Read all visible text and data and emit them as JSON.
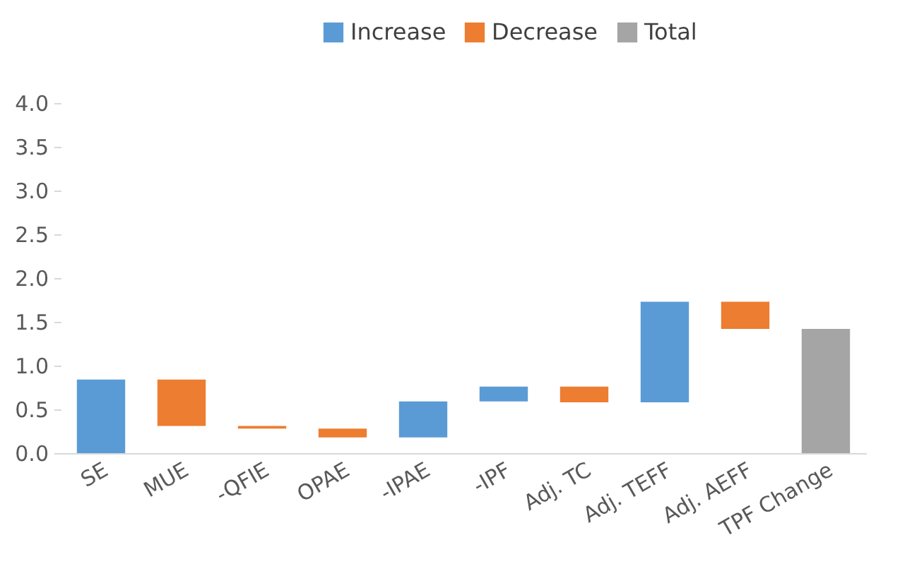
{
  "chart_data": {
    "type": "bar",
    "categories": [
      "SE",
      "MUE",
      "-QFIE",
      "OPAE",
      "-IPAE",
      "-IPF",
      "Adj. TC",
      "Adj. TEFF",
      "Adj. AEFF",
      "TPF Change"
    ],
    "series": [
      {
        "name": "Increase",
        "color": "#5b9bd5",
        "base": [
          0,
          null,
          null,
          null,
          0.18,
          0.59,
          null,
          0.58,
          null,
          null
        ],
        "values": [
          0.84,
          null,
          null,
          null,
          0.41,
          0.17,
          null,
          1.15,
          null,
          null
        ]
      },
      {
        "name": "Decrease",
        "color": "#ed7d31",
        "base": [
          null,
          0.84,
          0.31,
          0.28,
          null,
          null,
          0.76,
          null,
          1.73,
          null
        ],
        "values": [
          null,
          -0.53,
          -0.03,
          -0.1,
          null,
          null,
          -0.18,
          null,
          -0.31,
          null
        ]
      },
      {
        "name": "Total",
        "color": "#a5a5a5",
        "values": [
          null,
          null,
          null,
          null,
          null,
          null,
          null,
          null,
          null,
          1.42
        ]
      }
    ],
    "ylim": [
      0,
      4
    ],
    "yticks": [
      {
        "value": 0,
        "label": "0.0"
      },
      {
        "value": 0.5,
        "label": "0.5"
      },
      {
        "value": 1,
        "label": "1.0"
      },
      {
        "value": 1.5,
        "label": "1.5"
      },
      {
        "value": 2,
        "label": "2.0"
      },
      {
        "value": 2.5,
        "label": "2.5"
      },
      {
        "value": 3,
        "label": "3.0"
      },
      {
        "value": 3.5,
        "label": "3.5"
      },
      {
        "value": 4,
        "label": "4.0"
      }
    ],
    "grid": false,
    "legend": "top"
  }
}
